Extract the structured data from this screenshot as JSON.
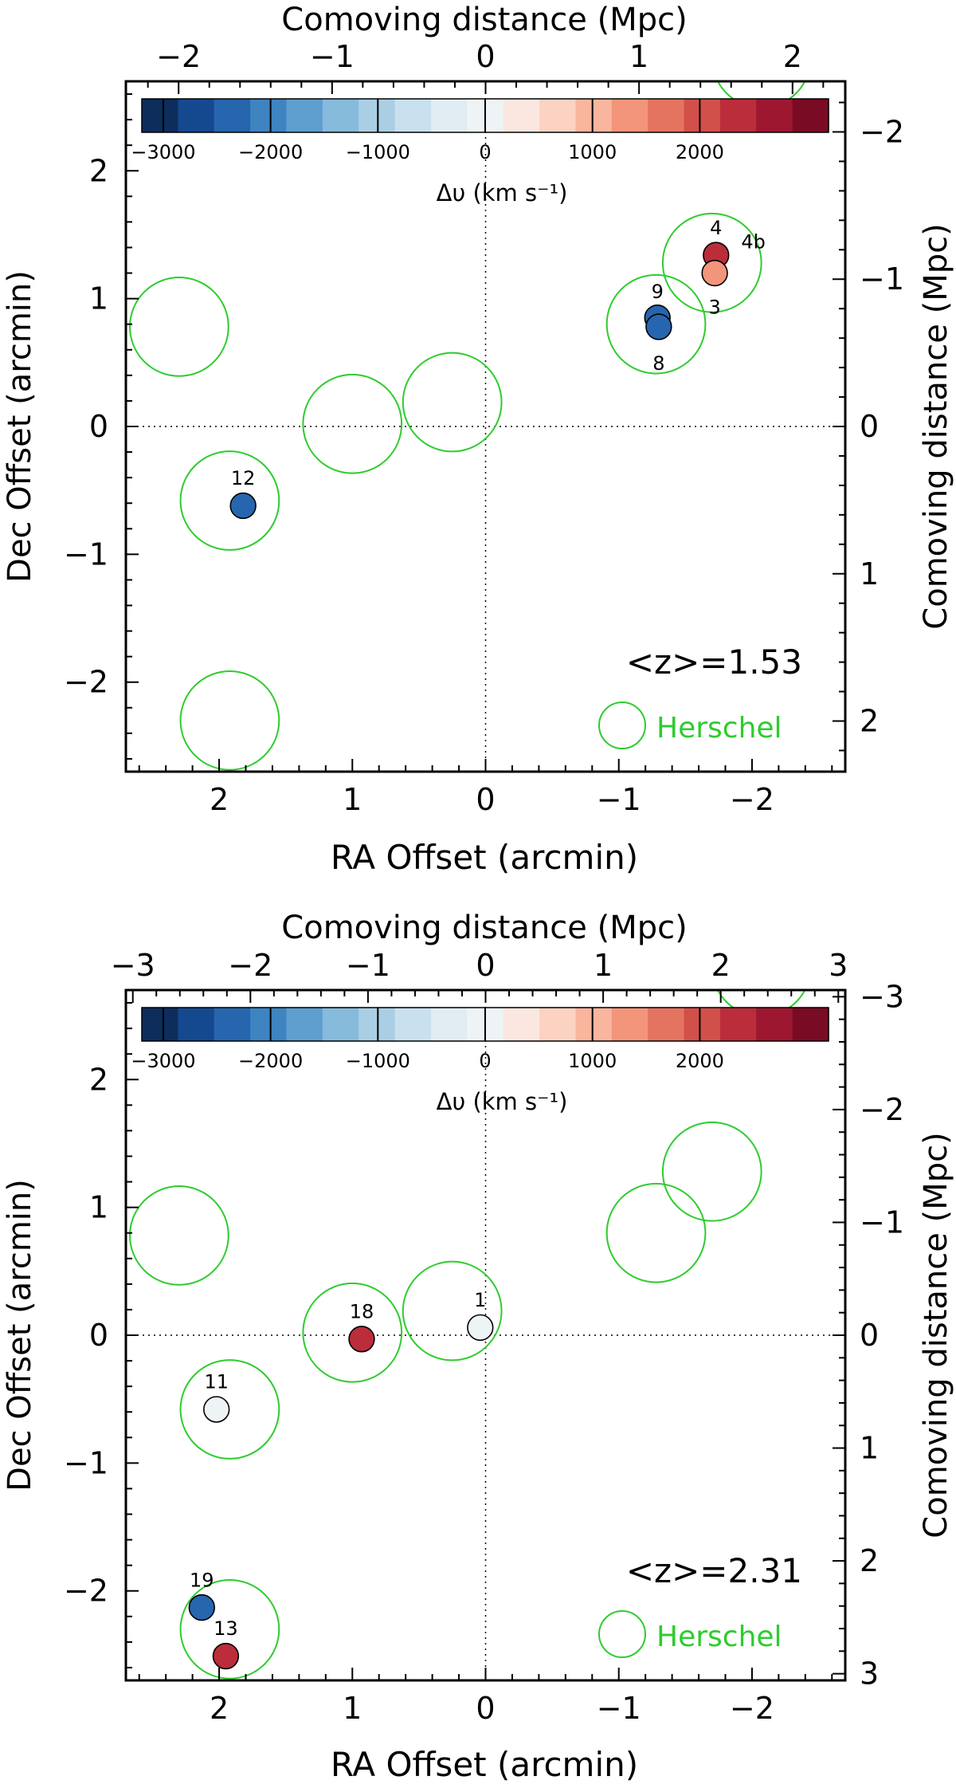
{
  "colorbar": {
    "colors": [
      "#0d2d5c",
      "#15498f",
      "#2666ae",
      "#3d84c1",
      "#5e9fd0",
      "#86bbdc",
      "#aacfe4",
      "#c9e0ee",
      "#e1ecf3",
      "#eef3f6",
      "#fbe7e0",
      "#fcd3c3",
      "#f9b59d",
      "#f2957b",
      "#e47460",
      "#d2504a",
      "#bb2d3a",
      "#9d1730",
      "#7a0b25"
    ],
    "vmin": -3200,
    "vmax": 3200,
    "tick_values": [
      -3000,
      -2000,
      -1000,
      0,
      1000,
      2000
    ],
    "tick_labels": [
      "−3000",
      "−2000",
      "−1000",
      "0",
      "1000",
      "2000"
    ],
    "label": "Δυ (km s⁻¹)"
  },
  "chart_data": [
    {
      "type": "scatter",
      "title": "",
      "xlabel": "RA Offset (arcmin)",
      "ylabel": "Dec Offset (arcmin)",
      "top_xlabel": "Comoving distance (Mpc)",
      "right_ylabel": "Comoving distance (Mpc)",
      "xlim": [
        2.7,
        -2.7
      ],
      "ylim": [
        -2.7,
        2.7
      ],
      "x_ticks": [
        2,
        1,
        0,
        -1,
        -2
      ],
      "x_tick_labels": [
        "2",
        "1",
        "0",
        "−1",
        "−2"
      ],
      "y_ticks": [
        -2,
        -1,
        0,
        1,
        2
      ],
      "y_tick_labels": [
        "−2",
        "−1",
        "0",
        "1",
        "2"
      ],
      "top_ticks": [
        -2,
        -1,
        0,
        1,
        2
      ],
      "top_tick_labels": [
        "−2",
        "−1",
        "0",
        "1",
        "2"
      ],
      "top_scale": 0.868,
      "right_ticks": [
        -2,
        -1,
        0,
        1,
        2
      ],
      "right_tick_labels": [
        "−2",
        "−1",
        "0",
        "1",
        "2"
      ],
      "right_scale": 0.868,
      "redshift_label": "<z>=1.53",
      "legend_label": "Herschel",
      "herschel_beams": [
        {
          "x": 2.3,
          "y": 0.78
        },
        {
          "x": 1.0,
          "y": 0.02
        },
        {
          "x": 0.25,
          "y": 0.19
        },
        {
          "x": 1.92,
          "y": -0.58
        },
        {
          "x": 1.92,
          "y": -2.3
        },
        {
          "x": -1.28,
          "y": 0.8
        },
        {
          "x": -1.7,
          "y": 1.28
        },
        {
          "x": -2.07,
          "y": 2.88
        }
      ],
      "galaxies": [
        {
          "id": "4",
          "x": -1.73,
          "y": 1.34,
          "dv": 2400,
          "lx": 0.0,
          "ly": 0.22
        },
        {
          "id": "4b",
          "x": -1.73,
          "y": 1.34,
          "dv": 2400,
          "lx": -0.28,
          "ly": 0.11,
          "hide_marker": true
        },
        {
          "id": "3",
          "x": -1.72,
          "y": 1.2,
          "dv": 1400,
          "lx": 0.0,
          "ly": -0.26
        },
        {
          "id": "9",
          "x": -1.29,
          "y": 0.85,
          "dv": -2500,
          "lx": 0.0,
          "ly": 0.21
        },
        {
          "id": "8",
          "x": -1.3,
          "y": 0.78,
          "dv": -2200,
          "lx": 0.0,
          "ly": -0.28
        },
        {
          "id": "12",
          "x": 1.82,
          "y": -0.62,
          "dv": -2500,
          "lx": 0.0,
          "ly": 0.22
        }
      ]
    },
    {
      "type": "scatter",
      "title": "",
      "xlabel": "RA Offset (arcmin)",
      "ylabel": "Dec Offset (arcmin)",
      "top_xlabel": "Comoving distance (Mpc)",
      "right_ylabel": "Comoving distance (Mpc)",
      "xlim": [
        2.7,
        -2.7
      ],
      "ylim": [
        -2.7,
        2.7
      ],
      "x_ticks": [
        2,
        1,
        0,
        -1,
        -2
      ],
      "x_tick_labels": [
        "2",
        "1",
        "0",
        "−1",
        "−2"
      ],
      "y_ticks": [
        -2,
        -1,
        0,
        1,
        2
      ],
      "y_tick_labels": [
        "−2",
        "−1",
        "0",
        "1",
        "2"
      ],
      "top_ticks": [
        -3,
        -2,
        -1,
        0,
        1,
        2,
        3
      ],
      "top_tick_labels": [
        "−3",
        "−2",
        "−1",
        "0",
        "1",
        "2",
        "3"
      ],
      "top_scale": 1.133,
      "right_ticks": [
        -3,
        -2,
        -1,
        0,
        1,
        2,
        3
      ],
      "right_tick_labels": [
        "−3",
        "−2",
        "−1",
        "0",
        "1",
        "2",
        "3"
      ],
      "right_scale": 1.133,
      "redshift_label": "<z>=2.31",
      "legend_label": "Herschel",
      "herschel_beams": [
        {
          "x": 2.3,
          "y": 0.78
        },
        {
          "x": 1.0,
          "y": 0.02
        },
        {
          "x": 0.25,
          "y": 0.19
        },
        {
          "x": 1.92,
          "y": -0.58
        },
        {
          "x": 1.92,
          "y": -2.3
        },
        {
          "x": -1.28,
          "y": 0.8
        },
        {
          "x": -1.7,
          "y": 1.28
        },
        {
          "x": -2.07,
          "y": 2.88
        }
      ],
      "galaxies": [
        {
          "id": "1",
          "x": 0.04,
          "y": 0.06,
          "dv": -100,
          "lx": 0.0,
          "ly": 0.22
        },
        {
          "id": "18",
          "x": 0.93,
          "y": -0.03,
          "dv": 2300,
          "lx": 0.0,
          "ly": 0.22
        },
        {
          "id": "11",
          "x": 2.02,
          "y": -0.58,
          "dv": -100,
          "lx": 0.0,
          "ly": 0.22
        },
        {
          "id": "19",
          "x": 2.13,
          "y": -2.13,
          "dv": -2500,
          "lx": 0.0,
          "ly": 0.22
        },
        {
          "id": "13",
          "x": 1.95,
          "y": -2.51,
          "dv": 2400,
          "lx": 0.0,
          "ly": 0.22
        }
      ]
    }
  ]
}
